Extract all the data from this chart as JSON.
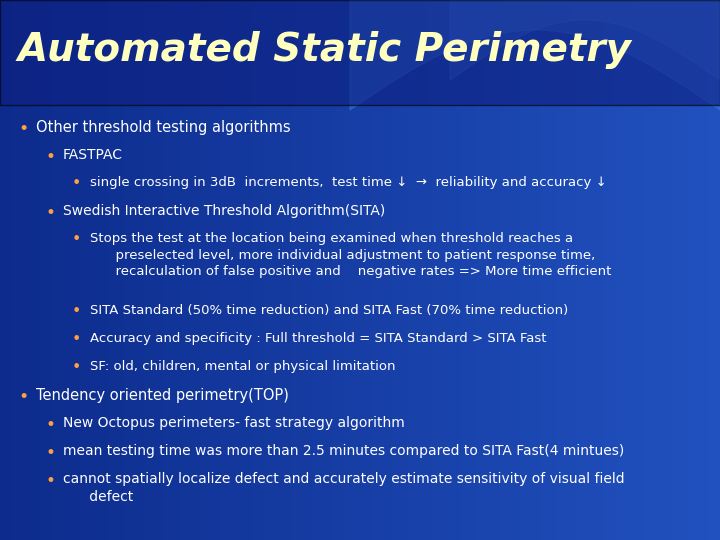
{
  "title": "Automated Static Perimetry",
  "title_color": "#FFFFC0",
  "title_fontsize": 28,
  "bullet_color": "#FFA040",
  "text_color": "#FFFFFF",
  "content": [
    {
      "level": 0,
      "text": "Other threshold testing algorithms"
    },
    {
      "level": 1,
      "text": "FASTPAC"
    },
    {
      "level": 2,
      "text": "single crossing in 3dB  increments,  test time ↓  →  reliability and accuracy ↓"
    },
    {
      "level": 1,
      "text": "Swedish Interactive Threshold Algorithm(SITA)"
    },
    {
      "level": 2,
      "text": "Stops the test at the location being examined when threshold reaches a\n      preselected level, more individual adjustment to patient response time,\n      recalculation of false positive and    negative rates => More time efficient"
    },
    {
      "level": 2,
      "text": "SITA Standard (50% time reduction) and SITA Fast (70% time reduction)"
    },
    {
      "level": 2,
      "text": "Accuracy and specificity : Full threshold = SITA Standard > SITA Fast"
    },
    {
      "level": 2,
      "text": "SF: old, children, mental or physical limitation"
    },
    {
      "level": 0,
      "text": "Tendency oriented perimetry(TOP)"
    },
    {
      "level": 1,
      "text": "New Octopus perimeters- fast strategy algorithm"
    },
    {
      "level": 1,
      "text": "mean testing time was more than 2.5 minutes compared to SITA Fast(4 mintues)"
    },
    {
      "level": 1,
      "text": "cannot spatially localize defect and accurately estimate sensitivity of visual field\n      defect"
    }
  ],
  "bg_left": "#0d2a8a",
  "bg_right": "#1a50cc",
  "wave_color": "#2e6bd4",
  "title_bg_color": "#1030a0"
}
